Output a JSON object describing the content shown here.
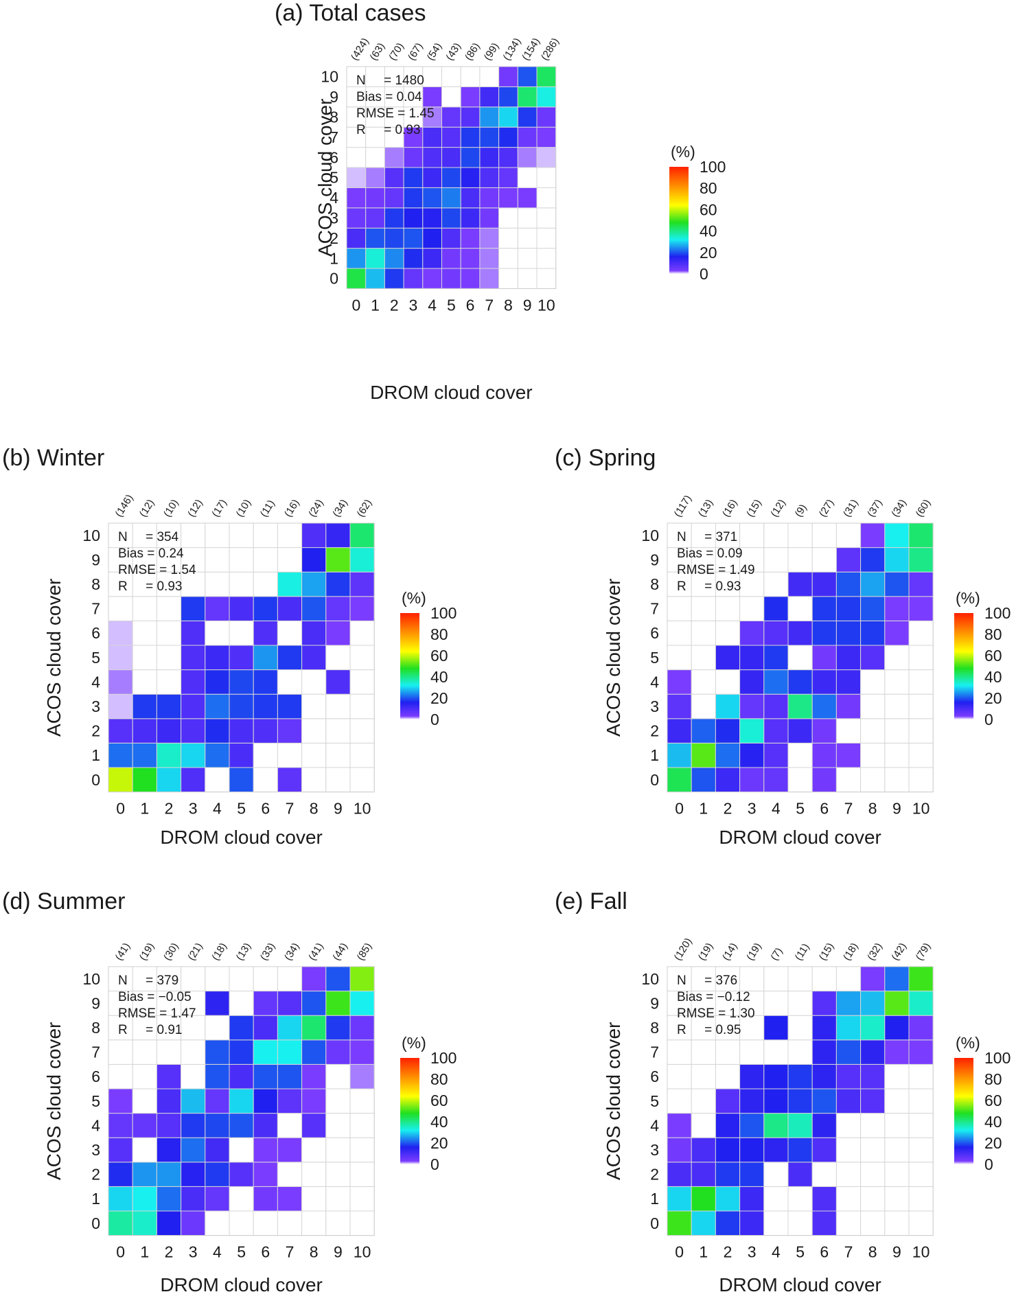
{
  "figure": {
    "colorbar": {
      "unit": "(%)",
      "ticks": [
        "0",
        "20",
        "40",
        "60",
        "80",
        "100"
      ],
      "range": [
        0,
        100
      ],
      "colors": [
        "#ffffff",
        "#7a3cff",
        "#2020f0",
        "#18f0f0",
        "#20e020",
        "#ffff00",
        "#ff2000"
      ]
    }
  },
  "chart_data": [
    {
      "type": "heatmap",
      "title": "(a) Total cases",
      "xlabel": "DROM cloud cover",
      "ylabel": "ACOS cloud cover",
      "x_categories": [
        "0",
        "1",
        "2",
        "3",
        "4",
        "5",
        "6",
        "7",
        "8",
        "9",
        "10"
      ],
      "y_categories": [
        "0",
        "1",
        "2",
        "3",
        "4",
        "5",
        "6",
        "7",
        "8",
        "9",
        "10"
      ],
      "column_counts": [
        "(424)",
        "(63)",
        "(70)",
        "(67)",
        "(54)",
        "(43)",
        "(86)",
        "(99)",
        "(134)",
        "(154)",
        "(286)"
      ],
      "stats": [
        "N     = 1480",
        "Bias = 0.04",
        "RMSE = 1.45",
        "R     = 0.93"
      ],
      "values": [
        [
          45,
          28,
          18,
          6,
          3,
          4,
          3,
          2,
          0,
          0,
          0
        ],
        [
          25,
          34,
          24,
          17,
          12,
          4,
          3,
          2,
          0,
          0,
          0
        ],
        [
          10,
          20,
          19,
          20,
          16,
          9,
          3,
          2,
          0,
          0,
          0
        ],
        [
          5,
          6,
          18,
          16,
          15,
          19,
          12,
          4,
          0,
          0,
          0
        ],
        [
          3,
          4,
          6,
          18,
          20,
          23,
          10,
          4,
          3,
          3,
          0
        ],
        [
          1,
          2,
          8,
          18,
          12,
          19,
          15,
          9,
          6,
          0,
          0
        ],
        [
          0,
          0,
          2,
          5,
          9,
          10,
          19,
          12,
          9,
          2,
          1
        ],
        [
          0,
          0,
          0,
          3,
          10,
          8,
          18,
          19,
          17,
          5,
          3
        ],
        [
          0,
          0,
          0,
          0,
          2,
          6,
          8,
          25,
          30,
          18,
          5
        ],
        [
          0,
          0,
          0,
          0,
          3,
          0,
          3,
          11,
          19,
          42,
          33
        ],
        [
          0,
          0,
          0,
          0,
          0,
          0,
          0,
          0,
          4,
          20,
          43
        ]
      ]
    },
    {
      "type": "heatmap",
      "title": "(b) Winter",
      "xlabel": "DROM cloud cover",
      "ylabel": "ACOS cloud cover",
      "x_categories": [
        "0",
        "1",
        "2",
        "3",
        "4",
        "5",
        "6",
        "7",
        "8",
        "9",
        "10"
      ],
      "y_categories": [
        "0",
        "1",
        "2",
        "3",
        "4",
        "5",
        "6",
        "7",
        "8",
        "9",
        "10"
      ],
      "column_counts": [
        "(146)",
        "(12)",
        "(10)",
        "(12)",
        "(17)",
        "(10)",
        "(11)",
        "(16)",
        "(24)",
        "(34)",
        "(62)"
      ],
      "stats": [
        "N     = 354",
        "Bias = 0.24",
        "RMSE = 1.54",
        "R     = 0.93"
      ],
      "values": [
        [
          60,
          48,
          30,
          9,
          0,
          20,
          0,
          7,
          0,
          0,
          0
        ],
        [
          22,
          22,
          35,
          30,
          22,
          10,
          0,
          0,
          0,
          0,
          0
        ],
        [
          8,
          10,
          12,
          9,
          17,
          10,
          9,
          6,
          0,
          0,
          0
        ],
        [
          1,
          18,
          18,
          9,
          22,
          19,
          18,
          18,
          0,
          0,
          0
        ],
        [
          2,
          0,
          0,
          9,
          17,
          19,
          18,
          0,
          0,
          9,
          0
        ],
        [
          1,
          0,
          0,
          9,
          12,
          9,
          25,
          18,
          10,
          0,
          0
        ],
        [
          1,
          0,
          0,
          9,
          0,
          0,
          9,
          0,
          10,
          3,
          0
        ],
        [
          0,
          0,
          0,
          18,
          6,
          10,
          18,
          10,
          20,
          6,
          3
        ],
        [
          0,
          0,
          0,
          0,
          0,
          0,
          0,
          33,
          26,
          18,
          7
        ],
        [
          0,
          0,
          0,
          0,
          0,
          0,
          0,
          0,
          16,
          52,
          34
        ],
        [
          0,
          0,
          0,
          0,
          0,
          0,
          0,
          0,
          9,
          13,
          42
        ]
      ]
    },
    {
      "type": "heatmap",
      "title": "(c) Spring",
      "xlabel": "DROM cloud cover",
      "ylabel": "ACOS cloud cover",
      "x_categories": [
        "0",
        "1",
        "2",
        "3",
        "4",
        "5",
        "6",
        "7",
        "8",
        "9",
        "10"
      ],
      "y_categories": [
        "0",
        "1",
        "2",
        "3",
        "4",
        "5",
        "6",
        "7",
        "8",
        "9",
        "10"
      ],
      "column_counts": [
        "(117)",
        "(13)",
        "(16)",
        "(15)",
        "(12)",
        "(9)",
        "(27)",
        "(31)",
        "(37)",
        "(34)",
        "(60)"
      ],
      "stats": [
        "N     = 371",
        "Bias = 0.09",
        "RMSE = 1.49",
        "R     = 0.93"
      ],
      "values": [
        [
          44,
          20,
          12,
          5,
          6,
          0,
          4,
          0,
          0,
          0,
          0
        ],
        [
          28,
          52,
          22,
          15,
          8,
          0,
          4,
          3,
          0,
          0,
          0
        ],
        [
          12,
          21,
          17,
          34,
          8,
          12,
          4,
          0,
          0,
          0,
          0
        ],
        [
          7,
          0,
          30,
          6,
          8,
          40,
          22,
          4,
          0,
          0,
          0
        ],
        [
          3,
          0,
          0,
          13,
          22,
          18,
          12,
          12,
          0,
          0,
          0
        ],
        [
          0,
          0,
          13,
          13,
          18,
          0,
          4,
          12,
          8,
          0,
          0
        ],
        [
          0,
          0,
          0,
          6,
          8,
          11,
          18,
          18,
          18,
          3,
          0
        ],
        [
          0,
          0,
          0,
          0,
          17,
          0,
          18,
          18,
          20,
          3,
          3
        ],
        [
          0,
          0,
          0,
          0,
          0,
          11,
          11,
          20,
          26,
          20,
          6
        ],
        [
          0,
          0,
          0,
          0,
          0,
          0,
          0,
          7,
          18,
          30,
          40
        ],
        [
          0,
          0,
          0,
          0,
          0,
          0,
          0,
          0,
          3,
          32,
          42
        ]
      ]
    },
    {
      "type": "heatmap",
      "title": "(d) Summer",
      "xlabel": "DROM cloud cover",
      "ylabel": "ACOS cloud cover",
      "x_categories": [
        "0",
        "1",
        "2",
        "3",
        "4",
        "5",
        "6",
        "7",
        "8",
        "9",
        "10"
      ],
      "y_categories": [
        "0",
        "1",
        "2",
        "3",
        "4",
        "5",
        "6",
        "7",
        "8",
        "9",
        "10"
      ],
      "column_counts": [
        "(41)",
        "(19)",
        "(30)",
        "(21)",
        "(18)",
        "(13)",
        "(33)",
        "(34)",
        "(41)",
        "(44)",
        "(85)"
      ],
      "stats": [
        "N     = 379",
        "Bias = −0.05",
        "RMSE = 1.47",
        "R     = 0.91"
      ],
      "values": [
        [
          38,
          35,
          16,
          5,
          0,
          0,
          0,
          0,
          0,
          0,
          0
        ],
        [
          30,
          32,
          22,
          10,
          6,
          0,
          4,
          3,
          0,
          0,
          0
        ],
        [
          17,
          25,
          25,
          15,
          18,
          8,
          3,
          0,
          0,
          0,
          0
        ],
        [
          8,
          0,
          15,
          22,
          11,
          0,
          3,
          3,
          0,
          0,
          0
        ],
        [
          6,
          6,
          8,
          18,
          19,
          20,
          10,
          0,
          8,
          0,
          0
        ],
        [
          3,
          0,
          10,
          28,
          6,
          30,
          16,
          7,
          3,
          0,
          0
        ],
        [
          0,
          0,
          8,
          0,
          20,
          10,
          20,
          20,
          3,
          0,
          2
        ],
        [
          0,
          0,
          0,
          0,
          20,
          18,
          32,
          32,
          20,
          5,
          3
        ],
        [
          0,
          0,
          0,
          0,
          0,
          18,
          10,
          30,
          42,
          18,
          5
        ],
        [
          0,
          0,
          0,
          0,
          14,
          0,
          6,
          8,
          20,
          50,
          32
        ],
        [
          0,
          0,
          0,
          0,
          0,
          0,
          0,
          0,
          3,
          20,
          55
        ]
      ]
    },
    {
      "type": "heatmap",
      "title": "(e) Fall",
      "xlabel": "DROM cloud cover",
      "ylabel": "ACOS cloud cover",
      "x_categories": [
        "0",
        "1",
        "2",
        "3",
        "4",
        "5",
        "6",
        "7",
        "8",
        "9",
        "10"
      ],
      "y_categories": [
        "0",
        "1",
        "2",
        "3",
        "4",
        "5",
        "6",
        "7",
        "8",
        "9",
        "10"
      ],
      "column_counts": [
        "(120)",
        "(19)",
        "(14)",
        "(19)",
        "(7)",
        "(11)",
        "(15)",
        "(18)",
        "(32)",
        "(42)",
        "(79)"
      ],
      "stats": [
        "N     = 376",
        "Bias = −0.12",
        "RMSE = 1.30",
        "R     = 0.95"
      ],
      "values": [
        [
          50,
          30,
          18,
          12,
          0,
          0,
          9,
          0,
          0,
          0,
          0
        ],
        [
          30,
          48,
          30,
          12,
          0,
          0,
          9,
          0,
          0,
          0,
          0
        ],
        [
          10,
          10,
          18,
          18,
          0,
          10,
          0,
          0,
          0,
          0,
          0
        ],
        [
          4,
          10,
          16,
          16,
          14,
          18,
          9,
          0,
          0,
          0,
          0
        ],
        [
          3,
          0,
          15,
          20,
          40,
          36,
          14,
          0,
          0,
          0,
          0
        ],
        [
          0,
          0,
          8,
          14,
          16,
          18,
          20,
          10,
          8,
          0,
          0
        ],
        [
          0,
          0,
          0,
          14,
          16,
          18,
          14,
          8,
          8,
          0,
          0
        ],
        [
          0,
          0,
          0,
          0,
          0,
          0,
          14,
          20,
          14,
          3,
          3
        ],
        [
          0,
          0,
          0,
          0,
          16,
          0,
          14,
          30,
          35,
          16,
          4
        ],
        [
          0,
          0,
          0,
          0,
          0,
          0,
          8,
          26,
          28,
          52,
          35
        ],
        [
          0,
          0,
          0,
          0,
          0,
          0,
          0,
          0,
          3,
          22,
          50
        ]
      ]
    }
  ]
}
